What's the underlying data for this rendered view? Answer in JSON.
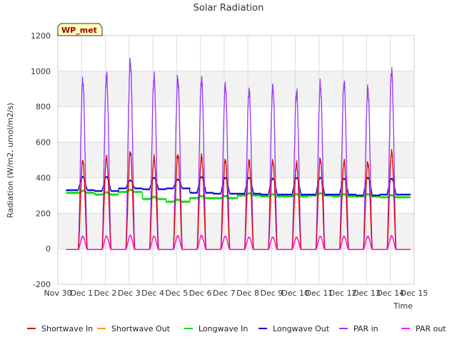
{
  "chart_data": {
    "type": "line",
    "title": "Solar Radiation",
    "xlabel": "Time",
    "ylabel": "Radiation (W/m2, umol/m2/s)",
    "ylim": [
      -200,
      1200
    ],
    "yticks": [
      -200,
      0,
      200,
      400,
      600,
      800,
      1000,
      1200
    ],
    "xlim": [
      0,
      15
    ],
    "xtick_labels": [
      "Nov 30",
      "Dec 1",
      "Dec 2",
      "Dec 3",
      "Dec 4",
      "Dec 5",
      "Dec 6",
      "Dec 7",
      "Dec 8",
      "Dec 9",
      "Dec 10",
      "Dec 11",
      "Dec 12",
      "Dec 13",
      "Dec 14",
      "Dec 15"
    ],
    "grid": true,
    "legend_position": "bottom",
    "site_label": "WP_met",
    "days": [
      "Dec 1",
      "Dec 2",
      "Dec 3",
      "Dec 4",
      "Dec 5",
      "Dec 6",
      "Dec 7",
      "Dec 8",
      "Dec 9",
      "Dec 10",
      "Dec 11",
      "Dec 12",
      "Dec 13",
      "Dec 14"
    ],
    "series": [
      {
        "name": "Shortwave In",
        "color": "#dd0000",
        "daily_peak": [
          495,
          515,
          545,
          510,
          530,
          520,
          500,
          495,
          495,
          480,
          505,
          490,
          485,
          545
        ],
        "night_value": -5
      },
      {
        "name": "Shortwave Out",
        "color": "#ff9900",
        "daily_peak": [
          65,
          70,
          75,
          70,
          75,
          70,
          70,
          65,
          65,
          60,
          70,
          65,
          65,
          75
        ],
        "night_value": -5
      },
      {
        "name": "Longwave In",
        "color": "#00dd00",
        "daily_level": [
          315,
          305,
          320,
          280,
          265,
          285,
          285,
          300,
          295,
          295,
          300,
          295,
          295,
          290
        ]
      },
      {
        "name": "Longwave Out",
        "color": "#0000cc",
        "daily_level": [
          330,
          325,
          340,
          335,
          340,
          315,
          310,
          310,
          305,
          305,
          305,
          305,
          300,
          305
        ],
        "daily_peak": [
          405,
          405,
          385,
          400,
          390,
          405,
          400,
          400,
          395,
          400,
          400,
          395,
          400,
          395
        ]
      },
      {
        "name": "PAR in",
        "color": "#9933ff",
        "daily_peak": [
          945,
          975,
          1055,
          965,
          960,
          955,
          920,
          890,
          910,
          885,
          925,
          935,
          900,
          1000
        ],
        "night_value": -5
      },
      {
        "name": "PAR out",
        "color": "#ff00ff",
        "daily_peak": [
          70,
          70,
          75,
          70,
          70,
          75,
          70,
          65,
          65,
          65,
          70,
          70,
          70,
          70
        ],
        "night_value": -5
      }
    ]
  }
}
